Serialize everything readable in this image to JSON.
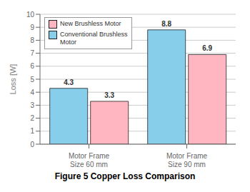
{
  "chart_data": {
    "type": "bar",
    "title": "Figure 5 Copper Loss Comparison",
    "categories": [
      "Motor Frame\nSize 60 mm",
      "Motor Frame\nSize 90 mm"
    ],
    "series": [
      {
        "name": "Conventional Brushless\nMotor",
        "color": "#87CEEB",
        "values": [
          4.3,
          8.8
        ]
      },
      {
        "name": "New Brushless Motor",
        "color": "#FFB6C1",
        "values": [
          3.3,
          6.9
        ]
      }
    ],
    "ylabel": "Loss [W]",
    "ylim": [
      0,
      10
    ],
    "yticks": [
      0,
      1,
      2,
      3,
      4,
      5,
      6,
      7,
      8,
      9,
      10
    ],
    "grid": true,
    "legend": "upper left",
    "data_labels": true
  }
}
